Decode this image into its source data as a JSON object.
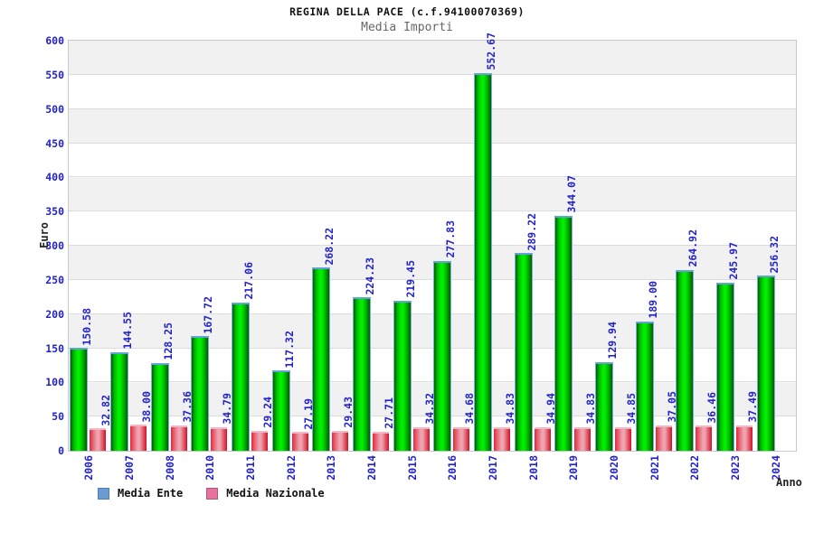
{
  "header": {
    "title": "REGINA DELLA PACE (c.f.94100070369)",
    "subtitle": "Media Importi"
  },
  "axes": {
    "y_title": "Euro",
    "x_title": "Anno"
  },
  "legend": {
    "items": [
      {
        "label": "Media Ente",
        "swatch_color": "#6b9bd2",
        "swatch_border": "#4a7fb5"
      },
      {
        "label": "Media Nazionale",
        "swatch_color": "#e8729c",
        "swatch_border": "#b05578"
      }
    ]
  },
  "colors": {
    "label_blue": "#2323cb",
    "subtitle_gray": "#666666",
    "band_gray": "#f1f1f1",
    "grid_line": "#dcdcdc",
    "plot_border": "#c9c9c9",
    "green_dark": "#015d01",
    "green_mid": "#00b400",
    "green_bright": "#00ee00",
    "green_cap": "#63a2d8",
    "green_outline": "#7aaede",
    "red_dark": "#d21127",
    "red_mid": "#e45d70",
    "red_bright": "#ee2435",
    "red_light": "#efa3af",
    "red_cap": "#f3b7c3"
  },
  "chart_data": {
    "type": "bar",
    "title": "Media Importi",
    "categories": [
      "2006",
      "2007",
      "2008",
      "2010",
      "2011",
      "2012",
      "2013",
      "2014",
      "2015",
      "2016",
      "2017",
      "2018",
      "2019",
      "2020",
      "2021",
      "2022",
      "2023",
      "2024"
    ],
    "series": [
      {
        "name": "Media Ente",
        "values": [
          150.58,
          144.55,
          128.25,
          167.72,
          217.06,
          117.32,
          268.22,
          224.23,
          219.45,
          277.83,
          552.67,
          289.22,
          344.07,
          129.94,
          189.0,
          264.92,
          245.97,
          256.32
        ],
        "labels": [
          "150.58",
          "144.55",
          "128.25",
          "167.72",
          "217.06",
          "117.32",
          "268.22",
          "224.23",
          "219.45",
          "277.83",
          "552.67",
          "289.22",
          "344.07",
          "129.94",
          "189.00",
          "264.92",
          "245.97",
          "256.32"
        ]
      },
      {
        "name": "Media Nazionale",
        "values": [
          32.82,
          38.0,
          37.36,
          34.79,
          29.24,
          27.19,
          29.43,
          27.71,
          34.32,
          34.68,
          34.83,
          34.94,
          34.83,
          34.85,
          37.05,
          36.46,
          37.49,
          null
        ],
        "labels": [
          "32.82",
          "38.00",
          "37.36",
          "34.79",
          "29.24",
          "27.19",
          "29.43",
          "27.71",
          "34.32",
          "34.68",
          "34.83",
          "34.94",
          "34.83",
          "34.85",
          "37.05",
          "36.46",
          "37.49",
          null
        ]
      }
    ],
    "xlabel": "Anno",
    "ylabel": "Euro",
    "ylim": [
      0,
      600
    ],
    "ytick_step": 50,
    "grid": "horizontal gridlines every 50 with alternating gray/white bands",
    "legend_position": "bottom-left",
    "bar_label_rotation": -90,
    "x_tick_rotation": -90
  }
}
